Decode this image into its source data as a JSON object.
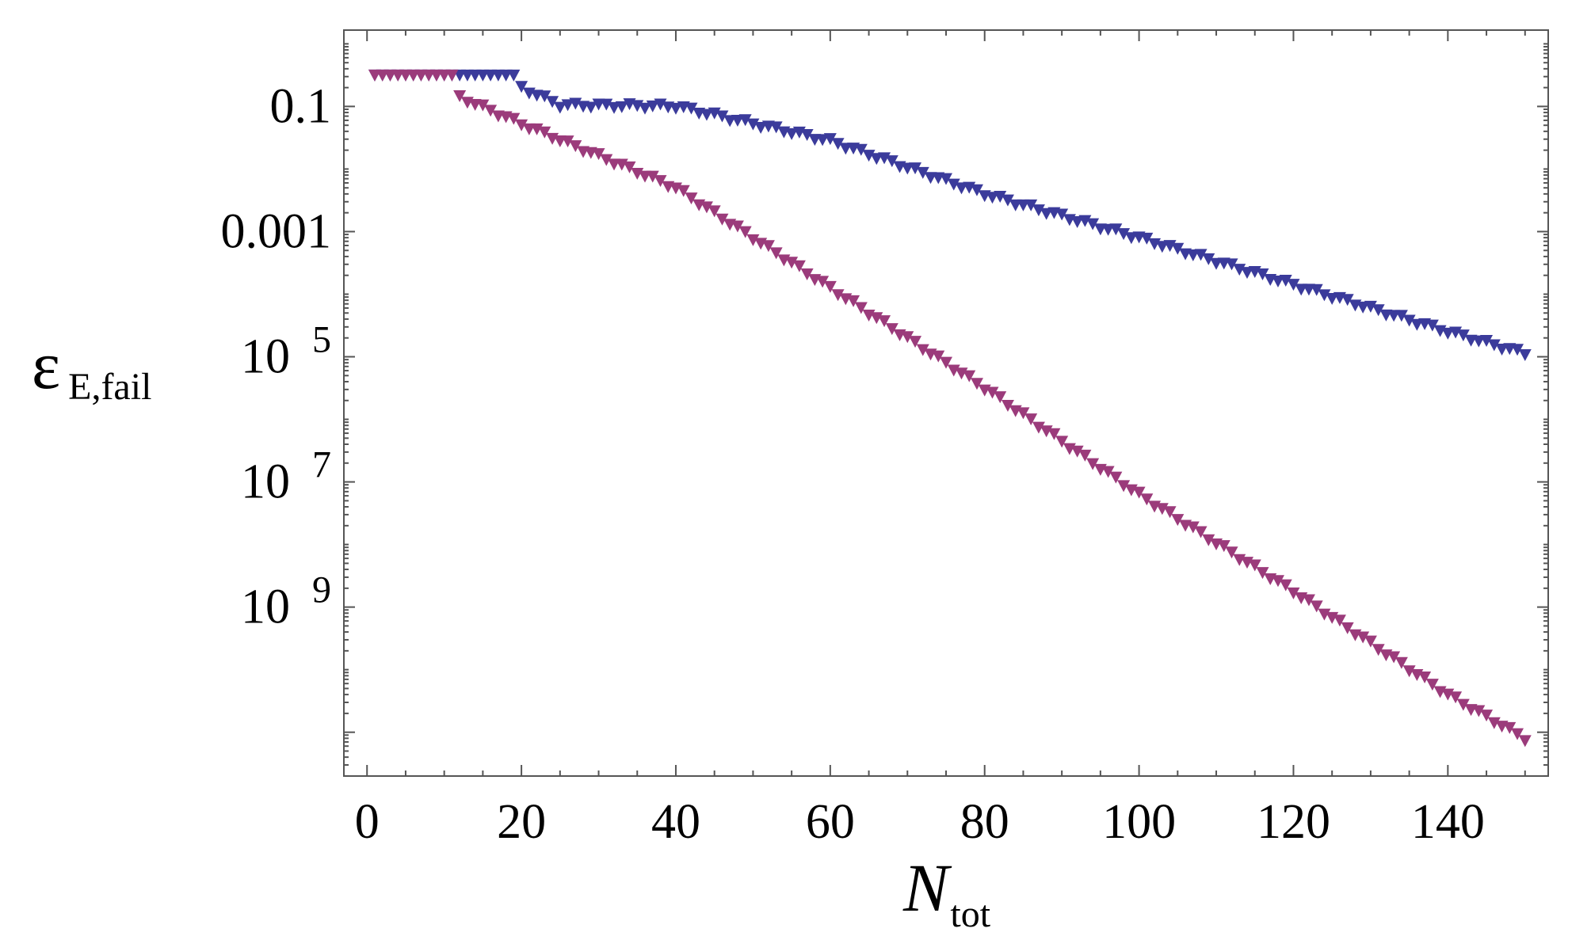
{
  "chart_data": {
    "type": "scatter",
    "title": "",
    "xlabel": {
      "main": "N",
      "sub": "tot"
    },
    "ylabel": {
      "main": "ε",
      "sub": "E,fail"
    },
    "y_scale": "log",
    "xlim": [
      -3,
      153
    ],
    "ylim_exp": [
      -11.7,
      0.22
    ],
    "x_ticks": [
      0,
      20,
      40,
      60,
      80,
      100,
      120,
      140
    ],
    "x_tick_labels": [
      "0",
      "20",
      "40",
      "60",
      "80",
      "100",
      "120",
      "140"
    ],
    "y_ticks": [
      {
        "exp": -1,
        "label": "0.1"
      },
      {
        "exp": -3,
        "label": "0.001"
      },
      {
        "exp": -5,
        "base": "10",
        "sup": "5"
      },
      {
        "exp": -7,
        "base": "10",
        "sup": "7"
      },
      {
        "exp": -9,
        "base": "10",
        "sup": "9"
      }
    ],
    "grid": false,
    "legend": "none",
    "marker": "down-triangle",
    "series": [
      {
        "color": "#3b3b9b",
        "x_range": [
          1,
          150
        ],
        "plateau": {
          "x_end": 19,
          "y_exp": -0.5
        },
        "points_exp": [
          [
            20,
            -0.7
          ],
          [
            25,
            -0.98
          ],
          [
            40,
            -1.0
          ],
          [
            60,
            -1.55
          ],
          [
            80,
            -2.4
          ],
          [
            100,
            -3.1
          ],
          [
            120,
            -3.85
          ],
          [
            140,
            -4.6
          ],
          [
            150,
            -4.95
          ]
        ]
      },
      {
        "color": "#9b3b7b",
        "x_range": [
          1,
          150
        ],
        "plateau": {
          "x_end": 11,
          "y_exp": -0.5
        },
        "points_exp": [
          [
            12,
            -0.85
          ],
          [
            20,
            -1.28
          ],
          [
            40,
            -2.3
          ],
          [
            60,
            -3.9
          ],
          [
            80,
            -5.5
          ],
          [
            100,
            -7.2
          ],
          [
            120,
            -8.75
          ],
          [
            140,
            -10.4
          ],
          [
            150,
            -11.1
          ]
        ]
      }
    ]
  }
}
